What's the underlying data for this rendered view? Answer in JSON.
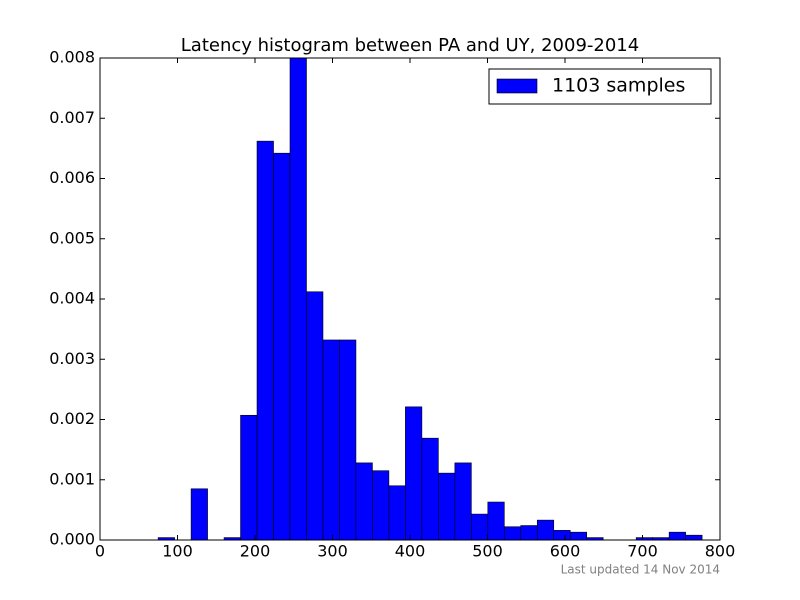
{
  "chart_data": {
    "type": "histogram",
    "title": "Latency histogram between PA and UY, 2009-2014",
    "annotation": "Last updated 14 Nov 2014",
    "series": [
      {
        "name": "1103 samples",
        "color": "#0000ff",
        "bins": [
          75,
          96.27,
          117.54,
          138.81,
          160.08,
          181.35,
          202.62,
          223.89,
          245.16,
          266.43,
          287.7,
          308.97,
          330.24,
          351.51,
          372.78,
          394.05,
          415.32,
          436.59,
          457.86,
          479.13,
          500.4,
          521.67,
          542.94,
          564.21,
          585.48,
          606.75,
          628.02,
          649.29,
          670.56,
          691.83,
          713.1,
          734.37,
          755.64,
          776.91
        ],
        "values": [
          4e-05,
          0,
          0.00085,
          0,
          4e-05,
          0.00207,
          0.00662,
          0.00642,
          0.008,
          0.00412,
          0.00332,
          0.00332,
          0.00128,
          0.00115,
          0.0009,
          0.00221,
          0.00169,
          0.00111,
          0.00128,
          0.00043,
          0.00063,
          0.00022,
          0.00024,
          0.00033,
          0.00016,
          0.00013,
          4e-05,
          0,
          0,
          4e-05,
          4e-05,
          0.00013,
          8e-05
        ]
      }
    ],
    "xlim": [
      0,
      800
    ],
    "xticks": [
      0,
      100,
      200,
      300,
      400,
      500,
      600,
      700,
      800
    ],
    "ylim": [
      0,
      0.008
    ],
    "yticks": [
      {
        "value": 0,
        "label": "0.000"
      },
      {
        "value": 0.001,
        "label": "0.001"
      },
      {
        "value": 0.002,
        "label": "0.002"
      },
      {
        "value": 0.003,
        "label": "0.003"
      },
      {
        "value": 0.004,
        "label": "0.004"
      },
      {
        "value": 0.005,
        "label": "0.005"
      },
      {
        "value": 0.006,
        "label": "0.006"
      },
      {
        "value": 0.007,
        "label": "0.007"
      },
      {
        "value": 0.008,
        "label": "0.008"
      }
    ],
    "legend": "upper right",
    "grid": false
  }
}
